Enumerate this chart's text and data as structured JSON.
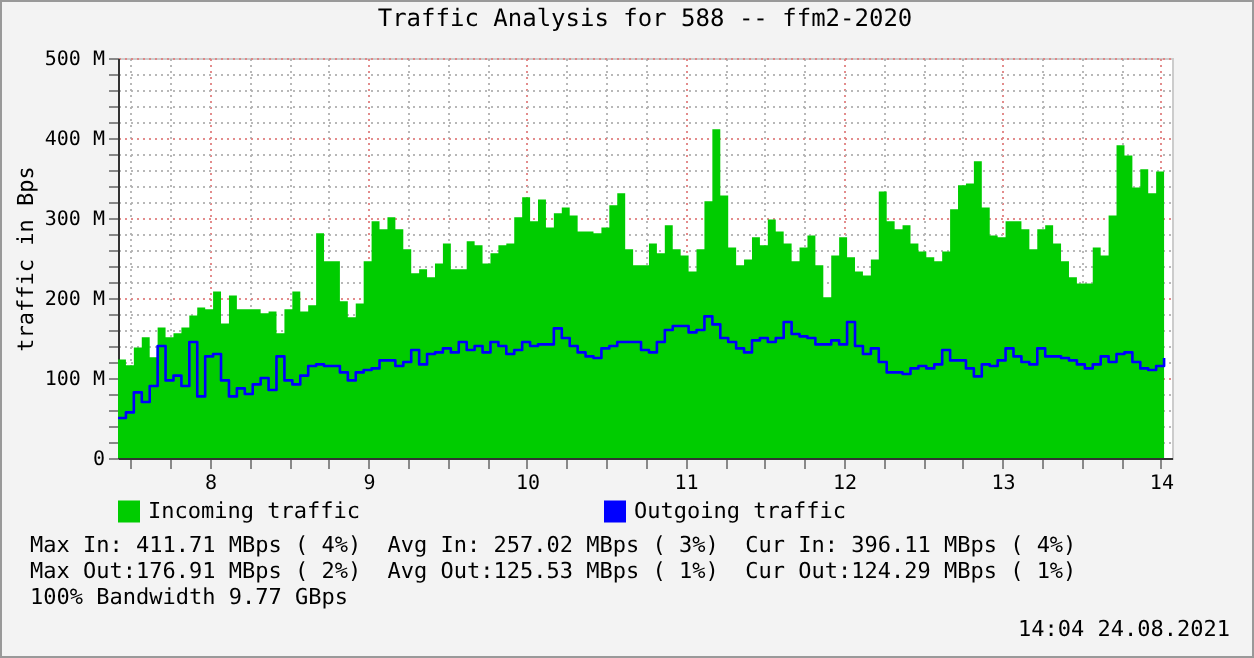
{
  "chart_data": {
    "type": "area",
    "title": "Traffic Analysis for 588 -- ffm2-2020",
    "ylabel": "traffic in Bps",
    "x": [
      7.42,
      7.47,
      7.52,
      7.57,
      7.62,
      7.67,
      7.72,
      7.77,
      7.82,
      7.87,
      7.92,
      7.97,
      8.02,
      8.07,
      8.12,
      8.17,
      8.22,
      8.27,
      8.32,
      8.37,
      8.42,
      8.47,
      8.52,
      8.57,
      8.62,
      8.67,
      8.72,
      8.77,
      8.82,
      8.87,
      8.92,
      8.97,
      9.02,
      9.07,
      9.12,
      9.17,
      9.22,
      9.27,
      9.32,
      9.37,
      9.42,
      9.47,
      9.52,
      9.57,
      9.62,
      9.67,
      9.72,
      9.77,
      9.82,
      9.87,
      9.92,
      9.97,
      10.02,
      10.07,
      10.12,
      10.17,
      10.22,
      10.27,
      10.32,
      10.37,
      10.42,
      10.47,
      10.52,
      10.57,
      10.62,
      10.67,
      10.72,
      10.77,
      10.82,
      10.87,
      10.92,
      10.97,
      11.02,
      11.07,
      11.12,
      11.17,
      11.22,
      11.27,
      11.32,
      11.37,
      11.42,
      11.47,
      11.52,
      11.57,
      11.62,
      11.67,
      11.72,
      11.77,
      11.82,
      11.87,
      11.92,
      11.97,
      12.02,
      12.07,
      12.12,
      12.17,
      12.22,
      12.27,
      12.32,
      12.37,
      12.42,
      12.47,
      12.52,
      12.57,
      12.62,
      12.67,
      12.72,
      12.77,
      12.82,
      12.87,
      12.92,
      12.97,
      13.02,
      13.07,
      13.12,
      13.17,
      13.22,
      13.27,
      13.32,
      13.37,
      13.42,
      13.47,
      13.52,
      13.57,
      13.62,
      13.67,
      13.72,
      13.77,
      13.82,
      13.87,
      13.92,
      13.97,
      14.02
    ],
    "series": [
      {
        "name": "Incoming traffic",
        "type": "area",
        "color": "#00cc00",
        "values": [
          123,
          116,
          138,
          151,
          126,
          163,
          151,
          156,
          163,
          178,
          188,
          186,
          208,
          168,
          203,
          186,
          186,
          186,
          181,
          183,
          156,
          186,
          208,
          183,
          191,
          281,
          246,
          246,
          196,
          176,
          193,
          246,
          296,
          286,
          301,
          286,
          261,
          231,
          236,
          226,
          243,
          268,
          236,
          236,
          271,
          266,
          243,
          256,
          266,
          268,
          301,
          326,
          296,
          323,
          288,
          306,
          313,
          303,
          283,
          283,
          281,
          288,
          316,
          331,
          261,
          241,
          241,
          268,
          256,
          291,
          261,
          253,
          233,
          261,
          321,
          411,
          328,
          263,
          241,
          248,
          276,
          266,
          298,
          283,
          268,
          246,
          263,
          278,
          241,
          201,
          253,
          276,
          251,
          233,
          228,
          248,
          333,
          296,
          286,
          291,
          268,
          258,
          251,
          246,
          258,
          311,
          341,
          343,
          371,
          313,
          278,
          276,
          296,
          296,
          286,
          261,
          286,
          291,
          268,
          246,
          226,
          218,
          218,
          263,
          253,
          303,
          391,
          378,
          338,
          361,
          331,
          358,
          396
        ]
      },
      {
        "name": "Outgoing traffic",
        "type": "step",
        "color": "#0000ff",
        "values": [
          50,
          57,
          82,
          70,
          90,
          140,
          97,
          103,
          90,
          145,
          77,
          127,
          130,
          97,
          77,
          87,
          80,
          92,
          100,
          85,
          127,
          97,
          92,
          103,
          115,
          117,
          115,
          115,
          107,
          97,
          107,
          110,
          112,
          122,
          122,
          115,
          120,
          135,
          117,
          130,
          132,
          137,
          132,
          145,
          135,
          140,
          132,
          145,
          140,
          130,
          135,
          145,
          140,
          142,
          142,
          162,
          150,
          140,
          132,
          127,
          125,
          137,
          140,
          145,
          145,
          145,
          135,
          132,
          145,
          160,
          165,
          165,
          157,
          160,
          177,
          167,
          150,
          145,
          137,
          132,
          147,
          150,
          145,
          150,
          170,
          155,
          152,
          150,
          142,
          142,
          147,
          142,
          170,
          140,
          130,
          137,
          120,
          107,
          107,
          105,
          112,
          115,
          112,
          117,
          135,
          122,
          122,
          112,
          102,
          117,
          115,
          122,
          137,
          127,
          120,
          117,
          137,
          127,
          127,
          125,
          122,
          117,
          112,
          117,
          127,
          120,
          130,
          132,
          120,
          112,
          110,
          115,
          125
        ]
      }
    ],
    "xlim": [
      7.42,
      14.07
    ],
    "xticks": [
      {
        "value": 7.5,
        "label": null
      },
      {
        "value": 7.75,
        "label": null
      },
      8,
      {
        "value": 8.25,
        "label": null
      },
      {
        "value": 8.5,
        "label": null
      },
      {
        "value": 8.75,
        "label": null
      },
      9,
      {
        "value": 9.25,
        "label": null
      },
      {
        "value": 9.5,
        "label": null
      },
      {
        "value": 9.75,
        "label": null
      },
      10,
      {
        "value": 10.25,
        "label": null
      },
      {
        "value": 10.5,
        "label": null
      },
      {
        "value": 10.75,
        "label": null
      },
      11,
      {
        "value": 11.25,
        "label": null
      },
      {
        "value": 11.5,
        "label": null
      },
      {
        "value": 11.75,
        "label": null
      },
      12,
      {
        "value": 12.25,
        "label": null
      },
      {
        "value": 12.5,
        "label": null
      },
      {
        "value": 12.75,
        "label": null
      },
      13,
      {
        "value": 13.25,
        "label": null
      },
      {
        "value": 13.5,
        "label": null
      },
      {
        "value": 13.75,
        "label": null
      },
      14
    ],
    "ylim": [
      0,
      500
    ],
    "yticks": [
      0,
      {
        "value": 20,
        "label": null
      },
      {
        "value": 40,
        "label": null
      },
      {
        "value": 60,
        "label": null
      },
      {
        "value": 80,
        "label": null
      },
      {
        "value": 100,
        "label": "100 M"
      },
      {
        "value": 120,
        "label": null
      },
      {
        "value": 140,
        "label": null
      },
      {
        "value": 160,
        "label": null
      },
      {
        "value": 180,
        "label": null
      },
      {
        "value": 200,
        "label": "200 M"
      },
      {
        "value": 220,
        "label": null
      },
      {
        "value": 240,
        "label": null
      },
      {
        "value": 260,
        "label": null
      },
      {
        "value": 280,
        "label": null
      },
      {
        "value": 300,
        "label": "300 M"
      },
      {
        "value": 320,
        "label": null
      },
      {
        "value": 340,
        "label": null
      },
      {
        "value": 360,
        "label": null
      },
      {
        "value": 380,
        "label": null
      },
      {
        "value": 400,
        "label": "400 M"
      },
      {
        "value": 420,
        "label": null
      },
      {
        "value": 440,
        "label": null
      },
      {
        "value": 460,
        "label": null
      },
      {
        "value": 480,
        "label": null
      },
      {
        "value": 500,
        "label": "500 M"
      }
    ],
    "grid": true,
    "legend": "bottom",
    "line_style": "solid",
    "annotations": [
      "Max In: 411.71 MBps ( 4%)  Avg In: 257.02 MBps ( 3%)  Cur In: 396.11 MBps ( 4%)",
      "Max Out:176.91 MBps ( 2%)  Avg Out:125.53 MBps ( 1%)  Cur Out:124.29 MBps ( 1%)",
      "100% Bandwidth 9.77 GBps",
      "14:04 24.08.2021"
    ]
  }
}
